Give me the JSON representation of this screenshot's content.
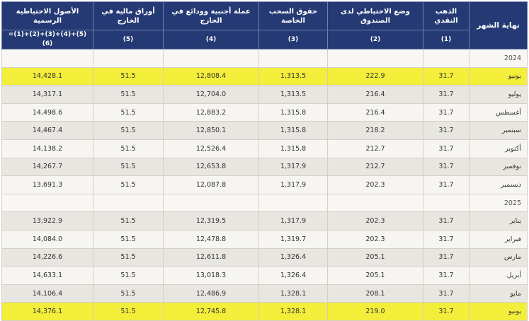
{
  "header": {
    "month": "نهاية الشهر",
    "gold": "الذهب النقدي",
    "imf_position": "وضع الاحتياطي لدى الصندوق",
    "sdr": "حقوق السحب الخاصة",
    "fx_deposits": "عملة أجنبية وودائع في الخارج",
    "securities": "أوراق مالية في الخارج",
    "total": "الأصول الاحتياطية الرسمية",
    "num_gold": "(1)",
    "num_imf": "(2)",
    "num_sdr": "(3)",
    "num_fx": "(4)",
    "num_sec": "(5)",
    "num_total": "(5)+(4)+(3)+(2)+(1)=(6)"
  },
  "rows": [
    {
      "type": "year",
      "month": "2024"
    },
    {
      "type": "data",
      "highlight": true,
      "month": "يونيو",
      "gold": "31.7",
      "imf": "222.9",
      "sdr": "1,313.5",
      "fx": "12,808.4",
      "sec": "51.5",
      "total": "14,428.1"
    },
    {
      "type": "data",
      "month": "يوليو",
      "gold": "31.7",
      "imf": "216.4",
      "sdr": "1,313.5",
      "fx": "12,704.0",
      "sec": "51.5",
      "total": "14,317.1"
    },
    {
      "type": "data",
      "month": "أغسطس",
      "gold": "31.7",
      "imf": "216.4",
      "sdr": "1,315.8",
      "fx": "12,883.2",
      "sec": "51.5",
      "total": "14,498.6"
    },
    {
      "type": "data",
      "month": "سبتمبر",
      "gold": "31.7",
      "imf": "218.2",
      "sdr": "1,315.8",
      "fx": "12,850.1",
      "sec": "51.5",
      "total": "14,467.4"
    },
    {
      "type": "data",
      "month": "أكتوبر",
      "gold": "31.7",
      "imf": "212.7",
      "sdr": "1,315.8",
      "fx": "12,526.4",
      "sec": "51.5",
      "total": "14,138.2"
    },
    {
      "type": "data",
      "month": "نوفمبر",
      "gold": "31.7",
      "imf": "212.7",
      "sdr": "1,317.9",
      "fx": "12,653.8",
      "sec": "51.5",
      "total": "14,267.7"
    },
    {
      "type": "data",
      "month": "ديسمبر",
      "gold": "31.7",
      "imf": "202.3",
      "sdr": "1,317.9",
      "fx": "12,087.8",
      "sec": "51.5",
      "total": "13,691.3"
    },
    {
      "type": "year",
      "month": "2025"
    },
    {
      "type": "data",
      "month": "يناير",
      "gold": "31.7",
      "imf": "202.3",
      "sdr": "1,317.9",
      "fx": "12,319.5",
      "sec": "51.5",
      "total": "13,922.9"
    },
    {
      "type": "data",
      "month": "فبراير",
      "gold": "31.7",
      "imf": "202.3",
      "sdr": "1,319.7",
      "fx": "12,478.8",
      "sec": "51.5",
      "total": "14,084.0"
    },
    {
      "type": "data",
      "month": "مارس",
      "gold": "31.7",
      "imf": "205.1",
      "sdr": "1,326.4",
      "fx": "12,611.8",
      "sec": "51.5",
      "total": "14,226.6"
    },
    {
      "type": "data",
      "month": "أبريل",
      "gold": "31.7",
      "imf": "205.1",
      "sdr": "1,326.4",
      "fx": "13,018.3",
      "sec": "51.5",
      "total": "14,633.1"
    },
    {
      "type": "data",
      "month": "مايو",
      "gold": "31.7",
      "imf": "208.1",
      "sdr": "1,328.1",
      "fx": "12,486.9",
      "sec": "51.5",
      "total": "14,106.4"
    },
    {
      "type": "data",
      "highlight": true,
      "month": "يونيو",
      "gold": "31.7",
      "imf": "219.0",
      "sdr": "1,328.1",
      "fx": "12,745.8",
      "sec": "51.5",
      "total": "14,376.1"
    }
  ]
}
